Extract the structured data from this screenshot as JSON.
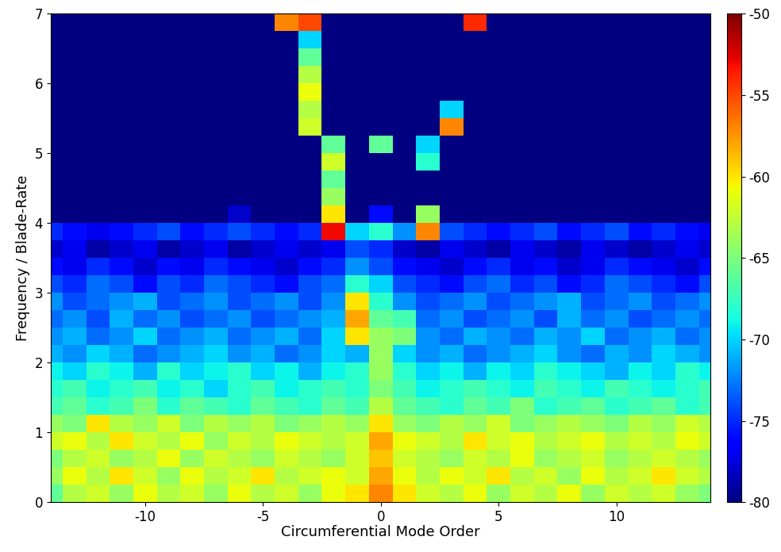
{
  "chart_data": {
    "type": "heatmap",
    "x_label": "Circumferential Mode Order",
    "y_label": "Frequency / Blade-Rate",
    "x": [
      -14,
      -13,
      -12,
      -11,
      -10,
      -9,
      -8,
      -7,
      -6,
      -5,
      -4,
      -3,
      -2,
      -1,
      0,
      1,
      2,
      3,
      4,
      5,
      6,
      7,
      8,
      9,
      10,
      11,
      12,
      13,
      14
    ],
    "y": [
      0.125,
      0.375,
      0.625,
      0.875,
      1.125,
      1.375,
      1.625,
      1.875,
      2.125,
      2.375,
      2.625,
      2.875,
      3.125,
      3.375,
      3.625,
      3.875,
      4.125,
      4.375,
      4.625,
      4.875,
      5.125,
      5.375,
      5.625,
      5.875,
      6.125,
      6.375,
      6.625,
      6.875
    ],
    "cells": [
      [
        -66,
        -63,
        -62,
        -64,
        -61,
        -63,
        -62,
        -64,
        -61,
        -63,
        -62,
        -64,
        -61,
        -60,
        -57,
        -60,
        -62,
        -63,
        -61,
        -64,
        -62,
        -63,
        -61,
        -64,
        -62,
        -63,
        -62,
        -64,
        -65
      ],
      [
        -64,
        -61,
        -63,
        -60,
        -62,
        -64,
        -61,
        -63,
        -62,
        -60,
        -63,
        -62,
        -61,
        -62,
        -58,
        -61,
        -63,
        -61,
        -62,
        -60,
        -63,
        -62,
        -64,
        -61,
        -63,
        -62,
        -60,
        -62,
        -63
      ],
      [
        -65,
        -63,
        -62,
        -64,
        -63,
        -61,
        -64,
        -62,
        -63,
        -64,
        -62,
        -63,
        -64,
        -62,
        -59,
        -62,
        -63,
        -64,
        -62,
        -63,
        -61,
        -64,
        -63,
        -62,
        -64,
        -63,
        -62,
        -63,
        -64
      ],
      [
        -62,
        -61,
        -63,
        -60,
        -62,
        -63,
        -61,
        -64,
        -62,
        -63,
        -61,
        -62,
        -63,
        -62,
        -58,
        -61,
        -62,
        -63,
        -60,
        -62,
        -61,
        -63,
        -62,
        -61,
        -63,
        -62,
        -63,
        -61,
        -62
      ],
      [
        -64,
        -65,
        -60,
        -63,
        -64,
        -62,
        -65,
        -63,
        -64,
        -63,
        -65,
        -64,
        -63,
        -64,
        -60,
        -64,
        -65,
        -63,
        -64,
        -62,
        -65,
        -64,
        -63,
        -64,
        -65,
        -63,
        -64,
        -62,
        -63
      ],
      [
        -67,
        -66,
        -68,
        -67,
        -65,
        -68,
        -66,
        -67,
        -68,
        -66,
        -67,
        -68,
        -66,
        -67,
        -63,
        -66,
        -67,
        -68,
        -66,
        -67,
        -65,
        -68,
        -67,
        -66,
        -68,
        -67,
        -66,
        -68,
        -67
      ],
      [
        -68,
        -67,
        -69,
        -68,
        -67,
        -69,
        -68,
        -70,
        -68,
        -67,
        -69,
        -68,
        -67,
        -68,
        -65,
        -67,
        -69,
        -68,
        -67,
        -68,
        -69,
        -67,
        -68,
        -69,
        -67,
        -68,
        -69,
        -68,
        -67
      ],
      [
        -69,
        -70,
        -68,
        -69,
        -71,
        -68,
        -70,
        -69,
        -68,
        -70,
        -69,
        -71,
        -69,
        -68,
        -64,
        -68,
        -70,
        -69,
        -71,
        -69,
        -70,
        -68,
        -69,
        -70,
        -71,
        -69,
        -70,
        -68,
        -69
      ],
      [
        -71,
        -72,
        -70,
        -71,
        -73,
        -72,
        -71,
        -70,
        -72,
        -71,
        -73,
        -72,
        -70,
        -71,
        -64,
        -70,
        -72,
        -71,
        -73,
        -72,
        -71,
        -70,
        -72,
        -73,
        -71,
        -72,
        -70,
        -71,
        -72
      ],
      [
        -72,
        -71,
        -73,
        -72,
        -70,
        -73,
        -72,
        -71,
        -73,
        -72,
        -71,
        -73,
        -70,
        -60,
        -64,
        -65,
        -72,
        -73,
        -71,
        -72,
        -73,
        -71,
        -72,
        -70,
        -73,
        -72,
        -71,
        -73,
        -72
      ],
      [
        -73,
        -72,
        -74,
        -71,
        -73,
        -72,
        -74,
        -73,
        -72,
        -74,
        -73,
        -72,
        -71,
        -58,
        -66,
        -67,
        -73,
        -72,
        -74,
        -73,
        -72,
        -74,
        -71,
        -73,
        -72,
        -74,
        -73,
        -72,
        -73
      ],
      [
        -72,
        -74,
        -73,
        -72,
        -71,
        -74,
        -73,
        -72,
        -74,
        -73,
        -72,
        -74,
        -72,
        -60,
        -68,
        -72,
        -74,
        -73,
        -72,
        -74,
        -73,
        -72,
        -71,
        -74,
        -73,
        -72,
        -74,
        -73,
        -72
      ],
      [
        -74,
        -75,
        -73,
        -74,
        -76,
        -74,
        -75,
        -73,
        -74,
        -75,
        -76,
        -74,
        -73,
        -68,
        -70,
        -74,
        -75,
        -76,
        -74,
        -73,
        -75,
        -74,
        -76,
        -75,
        -73,
        -74,
        -75,
        -76,
        -74
      ],
      [
        -76,
        -77,
        -75,
        -76,
        -78,
        -76,
        -77,
        -75,
        -76,
        -77,
        -78,
        -76,
        -75,
        -72,
        -74,
        -76,
        -77,
        -78,
        -76,
        -75,
        -77,
        -76,
        -78,
        -77,
        -75,
        -76,
        -77,
        -78,
        -76
      ],
      [
        -78,
        -77,
        -79,
        -78,
        -77,
        -79,
        -78,
        -77,
        -79,
        -78,
        -77,
        -78,
        -77,
        -74,
        -75,
        -78,
        -79,
        -77,
        -78,
        -79,
        -77,
        -78,
        -79,
        -77,
        -78,
        -79,
        -78,
        -77,
        -78
      ],
      [
        -75,
        -76,
        -77,
        -76,
        -75,
        -74,
        -76,
        -75,
        -74,
        -75,
        -76,
        -75,
        -53,
        -70,
        -68,
        -72,
        -57,
        -74,
        -75,
        -76,
        -75,
        -74,
        -76,
        -75,
        -74,
        -76,
        -75,
        -76,
        -77
      ],
      [
        -80,
        -80,
        -80,
        -80,
        -80,
        -80,
        -80,
        -80,
        -78,
        -80,
        -80,
        -80,
        -60,
        -80,
        -76,
        -80,
        -64,
        -80,
        -80,
        -80,
        -80,
        -80,
        -80,
        -80,
        -80,
        -80,
        -80,
        -80,
        -80
      ],
      [
        -80,
        -80,
        -80,
        -80,
        -80,
        -80,
        -80,
        -80,
        -80,
        -80,
        -80,
        -80,
        -64,
        -80,
        -80,
        -80,
        -80,
        -80,
        -80,
        -80,
        -80,
        -80,
        -80,
        -80,
        -80,
        -80,
        -80,
        -80,
        -80
      ],
      [
        -80,
        -80,
        -80,
        -80,
        -80,
        -80,
        -80,
        -80,
        -80,
        -80,
        -80,
        -80,
        -66,
        -80,
        -80,
        -80,
        -80,
        -80,
        -80,
        -80,
        -80,
        -80,
        -80,
        -80,
        -80,
        -80,
        -80,
        -80,
        -80
      ],
      [
        -80,
        -80,
        -80,
        -80,
        -80,
        -80,
        -80,
        -80,
        -80,
        -80,
        -80,
        -80,
        -62,
        -80,
        -80,
        -80,
        -68,
        -80,
        -80,
        -80,
        -80,
        -80,
        -80,
        -80,
        -80,
        -80,
        -80,
        -80,
        -80
      ],
      [
        -80,
        -80,
        -80,
        -80,
        -80,
        -80,
        -80,
        -80,
        -80,
        -80,
        -80,
        -80,
        -66,
        -80,
        -66,
        -80,
        -70,
        -80,
        -80,
        -80,
        -80,
        -80,
        -80,
        -80,
        -80,
        -80,
        -80,
        -80,
        -80
      ],
      [
        -80,
        -80,
        -80,
        -80,
        -80,
        -80,
        -80,
        -80,
        -80,
        -80,
        -80,
        -62,
        -80,
        -80,
        -80,
        -80,
        -80,
        -57,
        -80,
        -80,
        -80,
        -80,
        -80,
        -80,
        -80,
        -80,
        -80,
        -80,
        -80
      ],
      [
        -80,
        -80,
        -80,
        -80,
        -80,
        -80,
        -80,
        -80,
        -80,
        -80,
        -80,
        -63,
        -80,
        -80,
        -80,
        -80,
        -80,
        -70,
        -80,
        -80,
        -80,
        -80,
        -80,
        -80,
        -80,
        -80,
        -80,
        -80,
        -80
      ],
      [
        -80,
        -80,
        -80,
        -80,
        -80,
        -80,
        -80,
        -80,
        -80,
        -80,
        -80,
        -61,
        -80,
        -80,
        -80,
        -80,
        -80,
        -80,
        -80,
        -80,
        -80,
        -80,
        -80,
        -80,
        -80,
        -80,
        -80,
        -80,
        -80
      ],
      [
        -80,
        -80,
        -80,
        -80,
        -80,
        -80,
        -80,
        -80,
        -80,
        -80,
        -80,
        -63,
        -80,
        -80,
        -80,
        -80,
        -80,
        -80,
        -80,
        -80,
        -80,
        -80,
        -80,
        -80,
        -80,
        -80,
        -80,
        -80,
        -80
      ],
      [
        -80,
        -80,
        -80,
        -80,
        -80,
        -80,
        -80,
        -80,
        -80,
        -80,
        -80,
        -66,
        -80,
        -80,
        -80,
        -80,
        -80,
        -80,
        -80,
        -80,
        -80,
        -80,
        -80,
        -80,
        -80,
        -80,
        -80,
        -80,
        -80
      ],
      [
        -80,
        -80,
        -80,
        -80,
        -80,
        -80,
        -80,
        -80,
        -80,
        -80,
        -80,
        -70,
        -80,
        -80,
        -80,
        -80,
        -80,
        -80,
        -80,
        -80,
        -80,
        -80,
        -80,
        -80,
        -80,
        -80,
        -80,
        -80,
        -80
      ],
      [
        -80,
        -80,
        -80,
        -80,
        -80,
        -80,
        -80,
        -80,
        -80,
        -80,
        -57,
        -55,
        -80,
        -80,
        -80,
        -80,
        -80,
        -80,
        -54,
        -80,
        -80,
        -80,
        -80,
        -80,
        -80,
        -80,
        -80,
        -80,
        -80
      ]
    ],
    "xlim": [
      -14,
      14
    ],
    "ylim": [
      0,
      7
    ],
    "xticks": [
      -10,
      -5,
      0,
      5,
      10
    ],
    "yticks": [
      0,
      1,
      2,
      3,
      4,
      5,
      6,
      7
    ],
    "colorbar_range": [
      -80,
      -50
    ],
    "colorbar_ticks": [
      -80,
      -75,
      -70,
      -65,
      -60,
      -55,
      -50
    ],
    "color": "jet"
  }
}
